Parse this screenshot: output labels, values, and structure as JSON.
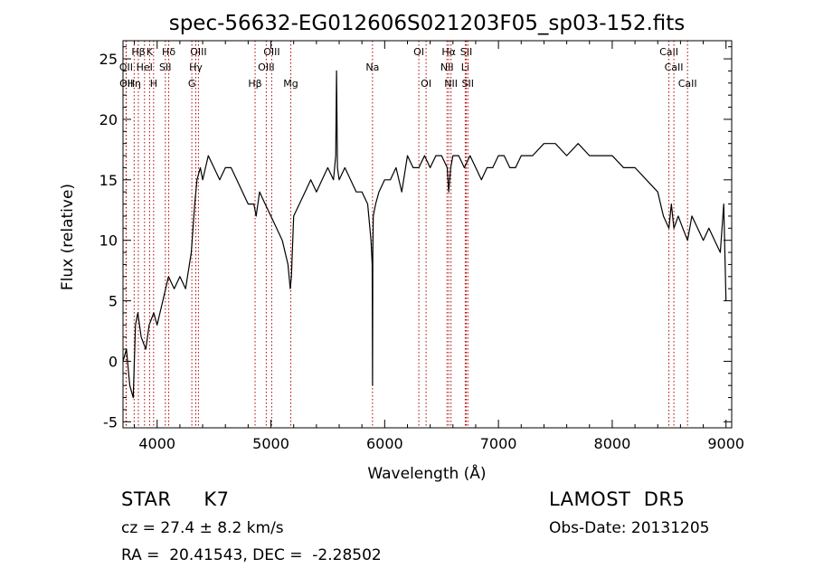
{
  "chart_data": {
    "type": "line",
    "title": "spec-56632-EG012606S021203F05_sp03-152.fits",
    "xlabel": "Wavelength (Å)",
    "ylabel": "Flux (relative)",
    "xlim": [
      3700,
      9050
    ],
    "ylim": [
      -5.5,
      26.5
    ],
    "xticks": [
      4000,
      5000,
      6000,
      7000,
      8000,
      9000
    ],
    "yticks": [
      -5,
      0,
      5,
      10,
      15,
      20,
      25
    ],
    "grid": false,
    "series": [
      {
        "x": [
          3700,
          3730,
          3760,
          3790,
          3810,
          3830,
          3860,
          3900,
          3930,
          3970,
          4000,
          4050,
          4100,
          4150,
          4200,
          4250,
          4300,
          4330,
          4350,
          4380,
          4400,
          4450,
          4500,
          4550,
          4600,
          4650,
          4700,
          4750,
          4800,
          4850,
          4870,
          4900,
          4950,
          5000,
          5050,
          5100,
          5150,
          5170,
          5180,
          5200,
          5250,
          5300,
          5350,
          5400,
          5450,
          5500,
          5550,
          5570,
          5577,
          5585,
          5600,
          5650,
          5700,
          5750,
          5800,
          5850,
          5880,
          5890,
          5893,
          5896,
          5900,
          5920,
          5950,
          6000,
          6050,
          6100,
          6150,
          6200,
          6250,
          6300,
          6350,
          6400,
          6450,
          6500,
          6550,
          6563,
          6580,
          6600,
          6650,
          6700,
          6750,
          6800,
          6850,
          6900,
          6950,
          7000,
          7050,
          7100,
          7150,
          7200,
          7300,
          7400,
          7500,
          7600,
          7700,
          7800,
          7900,
          8000,
          8100,
          8200,
          8300,
          8400,
          8450,
          8498,
          8520,
          8542,
          8580,
          8620,
          8662,
          8700,
          8750,
          8800,
          8850,
          8900,
          8950,
          8980,
          9000
        ],
        "y": [
          0,
          1,
          -2,
          -3,
          3,
          4,
          2,
          1,
          3,
          4,
          3,
          5,
          7,
          6,
          7,
          6,
          9,
          13,
          15,
          16,
          15,
          17,
          16,
          15,
          16,
          16,
          15,
          14,
          13,
          13,
          12,
          14,
          13,
          12,
          11,
          10,
          8,
          6,
          7,
          12,
          13,
          14,
          15,
          14,
          15,
          16,
          15,
          17,
          24,
          16,
          15,
          16,
          15,
          14,
          14,
          13,
          10,
          8,
          -2,
          9,
          12,
          13,
          14,
          15,
          15,
          16,
          14,
          17,
          16,
          16,
          17,
          16,
          17,
          17,
          16,
          14,
          16,
          17,
          17,
          16,
          17,
          16,
          15,
          16,
          16,
          17,
          17,
          16,
          16,
          17,
          17,
          18,
          18,
          17,
          18,
          17,
          17,
          17,
          16,
          16,
          15,
          14,
          12,
          11,
          13,
          11,
          12,
          11,
          10,
          12,
          11,
          10,
          11,
          10,
          9,
          13,
          5
        ]
      }
    ],
    "line_annotations": {
      "top_row": [
        {
          "label": "Hβ",
          "x": 3835
        },
        {
          "label": "K",
          "x": 3934
        },
        {
          "label": "Hδ",
          "x": 4102
        },
        {
          "label": "OIII",
          "x": 4363
        },
        {
          "label": "OIII",
          "x": 5007
        },
        {
          "label": "OI",
          "x": 6300
        },
        {
          "label": "Hα",
          "x": 6563
        },
        {
          "label": "SII",
          "x": 6717
        },
        {
          "label": "CaII",
          "x": 8498
        }
      ],
      "middle_row": [
        {
          "label": "OII",
          "x": 3727
        },
        {
          "label": "HeI",
          "x": 3889
        },
        {
          "label": "SII",
          "x": 4072
        },
        {
          "label": "Hγ",
          "x": 4340
        },
        {
          "label": "OIII",
          "x": 4959
        },
        {
          "label": "Na",
          "x": 5893
        },
        {
          "label": "NII",
          "x": 6548
        },
        {
          "label": "Li",
          "x": 6708
        },
        {
          "label": "CaII",
          "x": 8542
        }
      ],
      "bottom_row": [
        {
          "label": "OII",
          "x": 3729
        },
        {
          "label": "Hη",
          "x": 3798
        },
        {
          "label": "H",
          "x": 3969
        },
        {
          "label": "G",
          "x": 4305
        },
        {
          "label": "Hβ",
          "x": 4861
        },
        {
          "label": "Mg",
          "x": 5175
        },
        {
          "label": "OI",
          "x": 6364
        },
        {
          "label": "NII",
          "x": 6583
        },
        {
          "label": "SII",
          "x": 6731
        },
        {
          "label": "CaII",
          "x": 8662
        }
      ]
    }
  },
  "footer": {
    "star_class": "STAR     K7",
    "survey": "LAMOST  DR5",
    "cz": "cz = 27.4 ± 8.2 km/s",
    "obs_date": "Obs-Date: 20131205",
    "radec": "RA =  20.41543, DEC =  -2.28502"
  }
}
